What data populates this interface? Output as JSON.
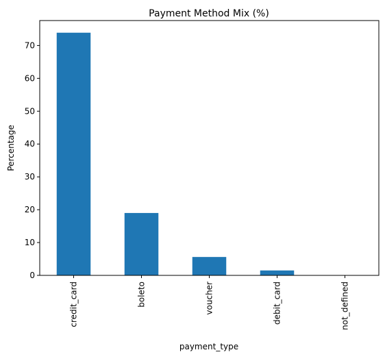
{
  "chart_data": {
    "type": "bar",
    "title": "Payment Method Mix (%)",
    "xlabel": "payment_type",
    "ylabel": "Percentage",
    "categories": [
      "credit_card",
      "boleto",
      "voucher",
      "debit_card",
      "not_defined"
    ],
    "values": [
      73.9,
      19.0,
      5.6,
      1.5,
      0.0
    ],
    "ylim": [
      0,
      77.6
    ],
    "yticks": [
      0,
      10,
      20,
      30,
      40,
      50,
      60,
      70
    ],
    "grid": false,
    "bar_color": "#1f77b4"
  }
}
